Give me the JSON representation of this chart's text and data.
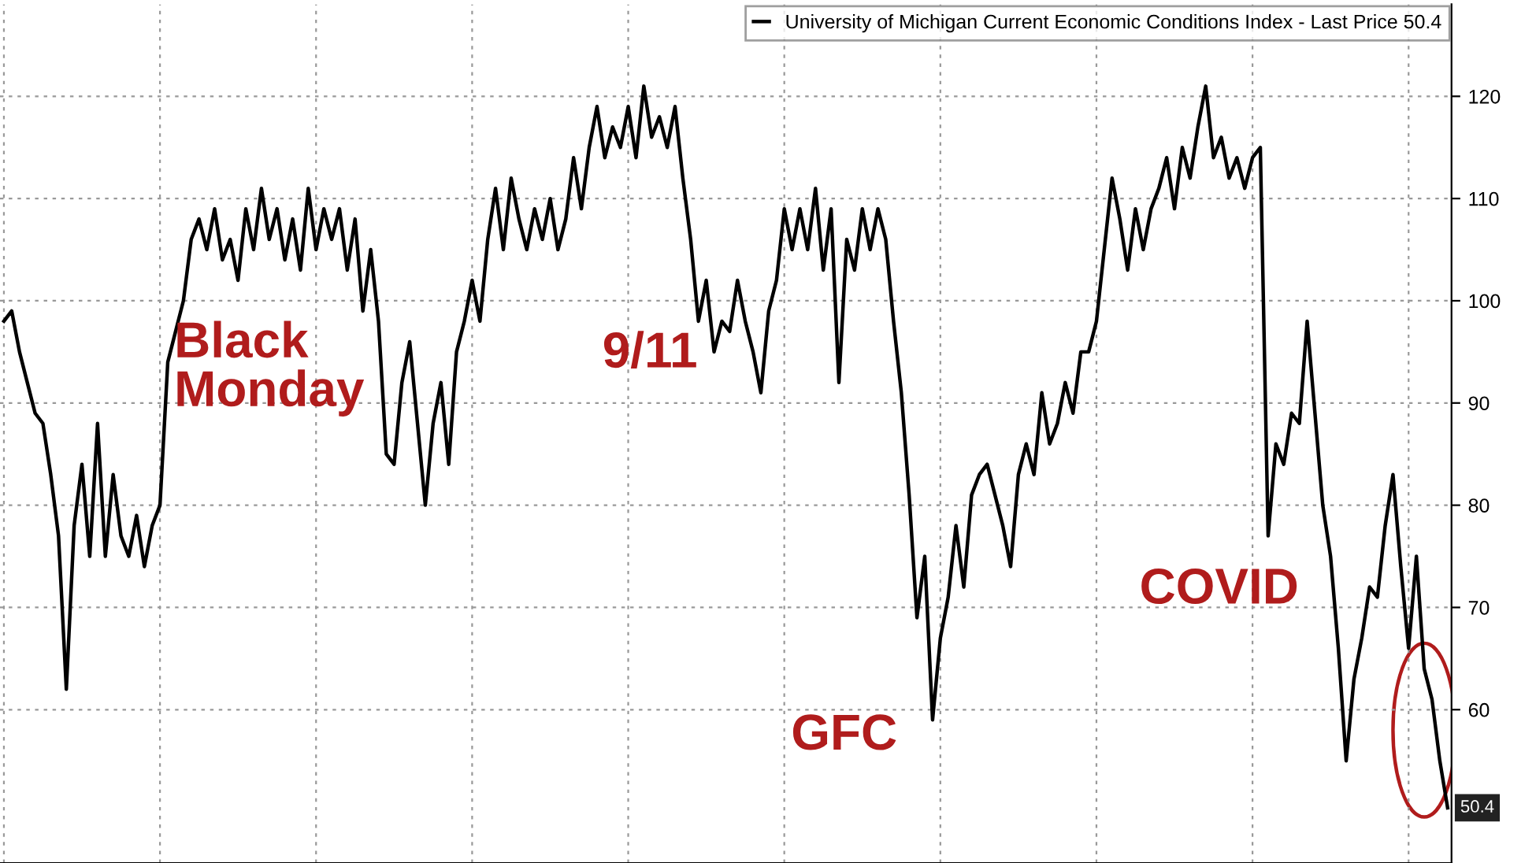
{
  "chart_data": {
    "type": "line",
    "categories": [
      null,
      null,
      null,
      null,
      null,
      null,
      null,
      null,
      null,
      null,
      null,
      null,
      null,
      null,
      null,
      null,
      null,
      null,
      null,
      null,
      null,
      null,
      null,
      null,
      null,
      null,
      null,
      null,
      null,
      null,
      null,
      null,
      null,
      null,
      null,
      null,
      null,
      null,
      null,
      null,
      null,
      null,
      null,
      null,
      null,
      null,
      null,
      null,
      null,
      null,
      null,
      null,
      null,
      null,
      null,
      null,
      null,
      null,
      null,
      null,
      null,
      null,
      null,
      null,
      null,
      null,
      null,
      null,
      null,
      null,
      null,
      null,
      null,
      null,
      null,
      null,
      null,
      null,
      null,
      null,
      null,
      null,
      null,
      null,
      null,
      null,
      null,
      null,
      null,
      null,
      null,
      null,
      null,
      null,
      null,
      null,
      null,
      null,
      null,
      null,
      null,
      null,
      null,
      null,
      null,
      null,
      null,
      null,
      null,
      null,
      null,
      null,
      null,
      null,
      null,
      null,
      null,
      null,
      null,
      null,
      null,
      null,
      null,
      null,
      null,
      null,
      null,
      null,
      null,
      null,
      null,
      null,
      null,
      null,
      null,
      null,
      null,
      null,
      null,
      null,
      null,
      null,
      null,
      null,
      null,
      null,
      null,
      null,
      null,
      null,
      null,
      null,
      null,
      null,
      null,
      null,
      null,
      null,
      null,
      null,
      null,
      null,
      null,
      null,
      null,
      null,
      null,
      null,
      null,
      null,
      null,
      null,
      null,
      null,
      null,
      null,
      null,
      null,
      null,
      null,
      null,
      null,
      null,
      null,
      null,
      null
    ],
    "series": [
      {
        "name": "University of Michigan Current Economic Conditions Index - Last Price 50.4",
        "color": "#000000",
        "values": [
          98,
          99,
          95,
          92,
          89,
          88,
          83,
          77,
          62,
          78,
          84,
          75,
          88,
          75,
          83,
          77,
          75,
          79,
          74,
          78,
          80,
          94,
          97,
          100,
          106,
          108,
          105,
          109,
          104,
          106,
          102,
          109,
          105,
          111,
          106,
          109,
          104,
          108,
          103,
          111,
          105,
          109,
          106,
          109,
          103,
          108,
          99,
          105,
          98,
          85,
          84,
          92,
          96,
          88,
          80,
          88,
          92,
          84,
          95,
          98,
          102,
          98,
          106,
          111,
          105,
          112,
          108,
          105,
          109,
          106,
          110,
          105,
          108,
          114,
          109,
          115,
          119,
          114,
          117,
          115,
          119,
          114,
          121,
          116,
          118,
          115,
          119,
          112,
          106,
          98,
          102,
          95,
          98,
          97,
          102,
          98,
          95,
          91,
          99,
          102,
          109,
          105,
          109,
          105,
          111,
          103,
          109,
          92,
          106,
          103,
          109,
          105,
          109,
          106,
          98,
          91,
          81,
          69,
          75,
          59,
          67,
          71,
          78,
          72,
          81,
          83,
          84,
          81,
          78,
          74,
          83,
          86,
          83,
          91,
          86,
          88,
          92,
          89,
          95,
          95,
          98,
          105,
          112,
          108,
          103,
          109,
          105,
          109,
          111,
          114,
          109,
          115,
          112,
          117,
          121,
          114,
          116,
          112,
          114,
          111,
          114,
          115,
          77,
          86,
          84,
          89,
          88,
          98,
          89,
          80,
          75,
          66,
          55,
          63,
          67,
          72,
          71,
          78,
          83,
          74,
          66,
          75,
          64,
          61,
          55,
          50.4
        ]
      }
    ],
    "yticks": [
      60,
      70,
      80,
      90,
      100,
      110,
      120
    ],
    "ylim": [
      45,
      129
    ],
    "grid": true,
    "legend": "top right",
    "tick_labels": "y",
    "annotations": [
      "Black\nMonday",
      "9/11",
      "GFC",
      "COVID",
      "50.4"
    ]
  }
}
